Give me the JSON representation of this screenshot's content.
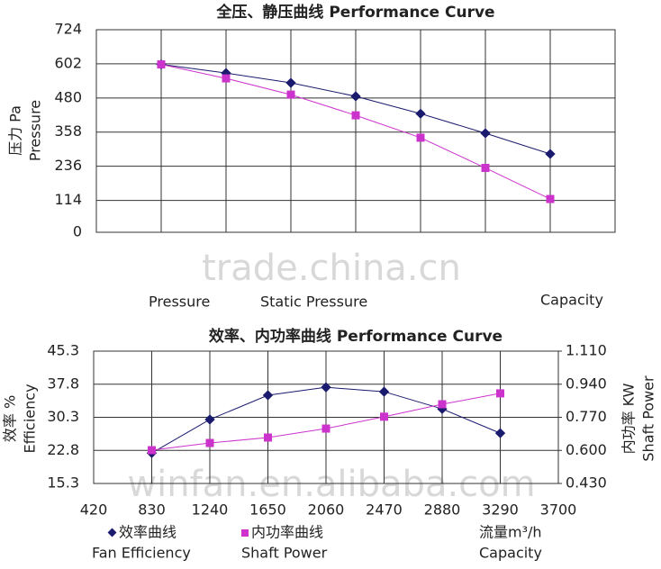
{
  "chart_data": [
    {
      "type": "line",
      "title": "全压、静压曲线  Performance Curve",
      "y_label": [
        "压力 Pa",
        "Pressure"
      ],
      "x_label": "Capacity",
      "categories": [
        null,
        null,
        null,
        null,
        null,
        null,
        null
      ],
      "ylim": [
        0,
        724
      ],
      "yticks": [
        0,
        114,
        236,
        358,
        480,
        602,
        724
      ],
      "grid": true,
      "series": [
        {
          "name": "Pressure",
          "color": "#1a1a6e",
          "marker": "diamond",
          "values": [
            600,
            569,
            534,
            486,
            424,
            354,
            280
          ]
        },
        {
          "name": "Static Pressure",
          "color": "#cc33cc",
          "marker": "square",
          "values": [
            600,
            550,
            492,
            418,
            338,
            230,
            119
          ]
        }
      ],
      "watermark": "trade.china.cn"
    },
    {
      "type": "line",
      "title": "效率、内功率曲线  Performance Curve",
      "y_label": [
        "效率 %",
        "Efficiency"
      ],
      "y2_label": [
        "内功率 KW",
        "Shaft Power"
      ],
      "x_label": [
        "流量m³/h",
        "Capacity"
      ],
      "x": [
        830,
        1240,
        1650,
        2060,
        2470,
        2880,
        3290
      ],
      "xlim": [
        420,
        3700
      ],
      "xticks": [
        420,
        830,
        1240,
        1650,
        2060,
        2470,
        2880,
        3290,
        3700
      ],
      "ylim": [
        15.3,
        45.3
      ],
      "yticks": [
        15.3,
        22.8,
        30.3,
        37.8,
        45.3
      ],
      "y2lim": [
        0.43,
        1.11
      ],
      "y2ticks": [
        {
          "value": 0.43,
          "label": "0.430"
        },
        {
          "value": 0.6,
          "label": "0.600"
        },
        {
          "value": 0.77,
          "label": "0.770"
        },
        {
          "value": 0.94,
          "label": "0.940"
        },
        {
          "value": 1.11,
          "label": "1.110"
        }
      ],
      "grid": true,
      "series": [
        {
          "name": "效率曲线",
          "label": "Fan Efficiency",
          "color": "#1a1a6e",
          "marker": "diamond",
          "values": [
            22.2,
            29.8,
            35.3,
            37.1,
            36.1,
            32.2,
            26.7
          ]
        },
        {
          "name": "内功率曲线",
          "label": "Shaft Power",
          "color": "#cc33cc",
          "marker": "square",
          "axis": "y2",
          "values": [
            0.601,
            0.638,
            0.666,
            0.712,
            0.773,
            0.837,
            0.893
          ]
        }
      ],
      "watermark": "winfan.en.alibaba.com"
    }
  ]
}
